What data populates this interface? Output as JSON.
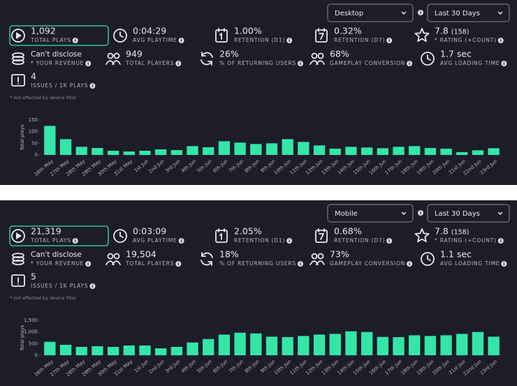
{
  "panels": [
    {
      "device_filter": "Desktop",
      "period": "Last 30 Days",
      "metrics": [
        {
          "value": "1,092",
          "label": "TOTAL PLAYS"
        },
        {
          "value": "0:04:29",
          "label": "AVG PLAYTIME"
        },
        {
          "value": "1.00%",
          "label": "RETENTION (D1)"
        },
        {
          "value": "0.32%",
          "label": "RETENTION (D7)"
        },
        {
          "value": "7.8",
          "extra": "(158)",
          "label": "* RATING (+COUNT)"
        },
        {
          "value": "Can't disclose",
          "label": "* YOUR REVENUE"
        },
        {
          "value": "949",
          "label": "TOTAL PLAYERS"
        },
        {
          "value": "26%",
          "label": "% OF RETURNING USERS"
        },
        {
          "value": "68%",
          "label": "GAMEPLAY CONVERSION"
        },
        {
          "value": "1.7 sec",
          "label": "AVG LOADING TIME"
        },
        {
          "value": "4",
          "label": "ISSUES / 1K PLAYS"
        }
      ],
      "note": "* not affected by device filter",
      "chart": {
        "type": "bar",
        "y_label": "Total plays",
        "color": "#33e6a8",
        "categories": [
          "26th May",
          "27th May",
          "28th May",
          "29th May",
          "30th May",
          "31st May",
          "1st Jun",
          "2nd Jun",
          "3rd Jun",
          "4th Jun",
          "5th Jun",
          "6th Jun",
          "7th Jun",
          "8th Jun",
          "9th Jun",
          "10th Jun",
          "11th Jun",
          "12th Jun",
          "13th Jun",
          "14th Jun",
          "15th Jun",
          "16th Jun",
          "17th Jun",
          "18th Jun",
          "19th Jun",
          "20th Jun",
          "21st Jun",
          "22nd Jun",
          "23rd Jun"
        ],
        "values": [
          125,
          68,
          35,
          30,
          18,
          15,
          18,
          24,
          21,
          38,
          33,
          59,
          53,
          47,
          50,
          68,
          56,
          41,
          27,
          35,
          32,
          29,
          35,
          38,
          30,
          27,
          12,
          20,
          29
        ],
        "ylim": [
          0,
          150
        ],
        "yticks": [
          0,
          50,
          100,
          150
        ]
      }
    },
    {
      "device_filter": "Mobile",
      "period": "Last 30 Days",
      "metrics": [
        {
          "value": "21,319",
          "label": "TOTAL PLAYS"
        },
        {
          "value": "0:03:09",
          "label": "AVG PLAYTIME"
        },
        {
          "value": "2.05%",
          "label": "RETENTION (D1)"
        },
        {
          "value": "0.68%",
          "label": "RETENTION (D7)"
        },
        {
          "value": "7.8",
          "extra": "(158)",
          "label": "* RATING (+COUNT)"
        },
        {
          "value": "Can't disclose",
          "label": "* YOUR REVENUE"
        },
        {
          "value": "19,504",
          "label": "TOTAL PLAYERS"
        },
        {
          "value": "18%",
          "label": "% OF RETURNING USERS"
        },
        {
          "value": "73%",
          "label": "GAMEPLAY CONVERSION"
        },
        {
          "value": "1.1 sec",
          "label": "AVG LOADING TIME"
        },
        {
          "value": "5",
          "label": "ISSUES / 1K PLAYS"
        }
      ],
      "note": "* not affected by device filter",
      "chart": {
        "type": "bar",
        "y_label": "Total plays",
        "color": "#33e6a8",
        "categories": [
          "26th May",
          "27th May",
          "28th May",
          "29th May",
          "30th May",
          "31st May",
          "1st Jun",
          "2nd Jun",
          "3rd Jun",
          "4th Jun",
          "5th Jun",
          "6th Jun",
          "7th Jun",
          "8th Jun",
          "9th Jun",
          "10th Jun",
          "11th Jun",
          "12th Jun",
          "13th Jun",
          "14th Jun",
          "15th Jun",
          "16th Jun",
          "17th Jun",
          "18th Jun",
          "19th Jun",
          "20th Jun",
          "21st Jun",
          "22nd Jun",
          "23rd Jun"
        ],
        "values": [
          580,
          450,
          360,
          390,
          360,
          420,
          420,
          300,
          360,
          550,
          700,
          890,
          970,
          940,
          800,
          780,
          830,
          890,
          920,
          1030,
          1000,
          790,
          780,
          860,
          830,
          860,
          920,
          1000,
          800
        ],
        "ylim": [
          0,
          1500
        ],
        "yticks": [
          0,
          {
            "value": 500,
            "label": "500"
          },
          {
            "value": 1000,
            "label": "1,000"
          },
          {
            "value": 1500,
            "label": "1,500"
          }
        ]
      }
    }
  ]
}
